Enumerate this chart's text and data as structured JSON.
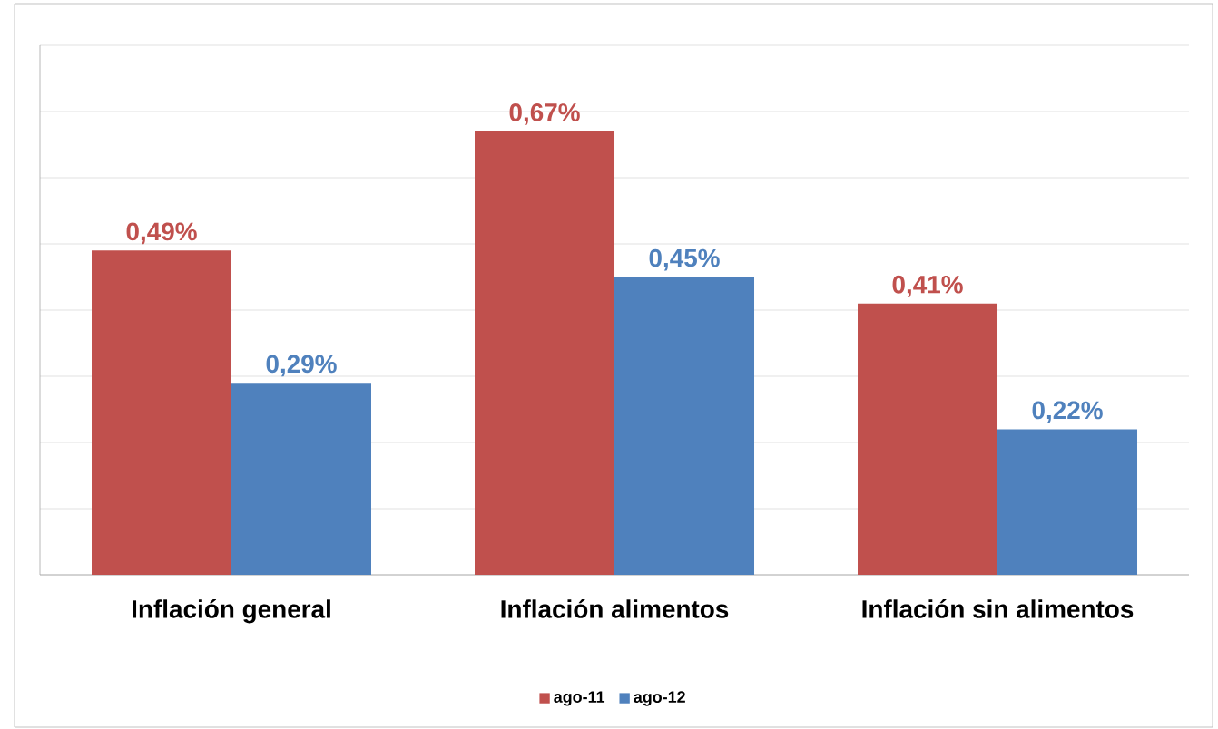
{
  "chart_data": {
    "type": "bar",
    "categories": [
      "Inflación general",
      "Inflación alimentos",
      "Inflación sin alimentos"
    ],
    "series": [
      {
        "name": "ago-11",
        "color": "#c0504d",
        "values": [
          0.49,
          0.67,
          0.41
        ],
        "value_labels": [
          "0,49%",
          "0,67%",
          "0,41%"
        ]
      },
      {
        "name": "ago-12",
        "color": "#4f81bd",
        "values": [
          0.29,
          0.45,
          0.22
        ],
        "value_labels": [
          "0,29%",
          "0,45%",
          "0,22%"
        ]
      }
    ],
    "ylim": [
      0,
      0.8
    ],
    "yticks": [
      0,
      0.1,
      0.2,
      0.3,
      0.4,
      0.5,
      0.6,
      0.7,
      0.8
    ],
    "grid": "y",
    "legend": "bottom",
    "tick_labels": "x"
  }
}
